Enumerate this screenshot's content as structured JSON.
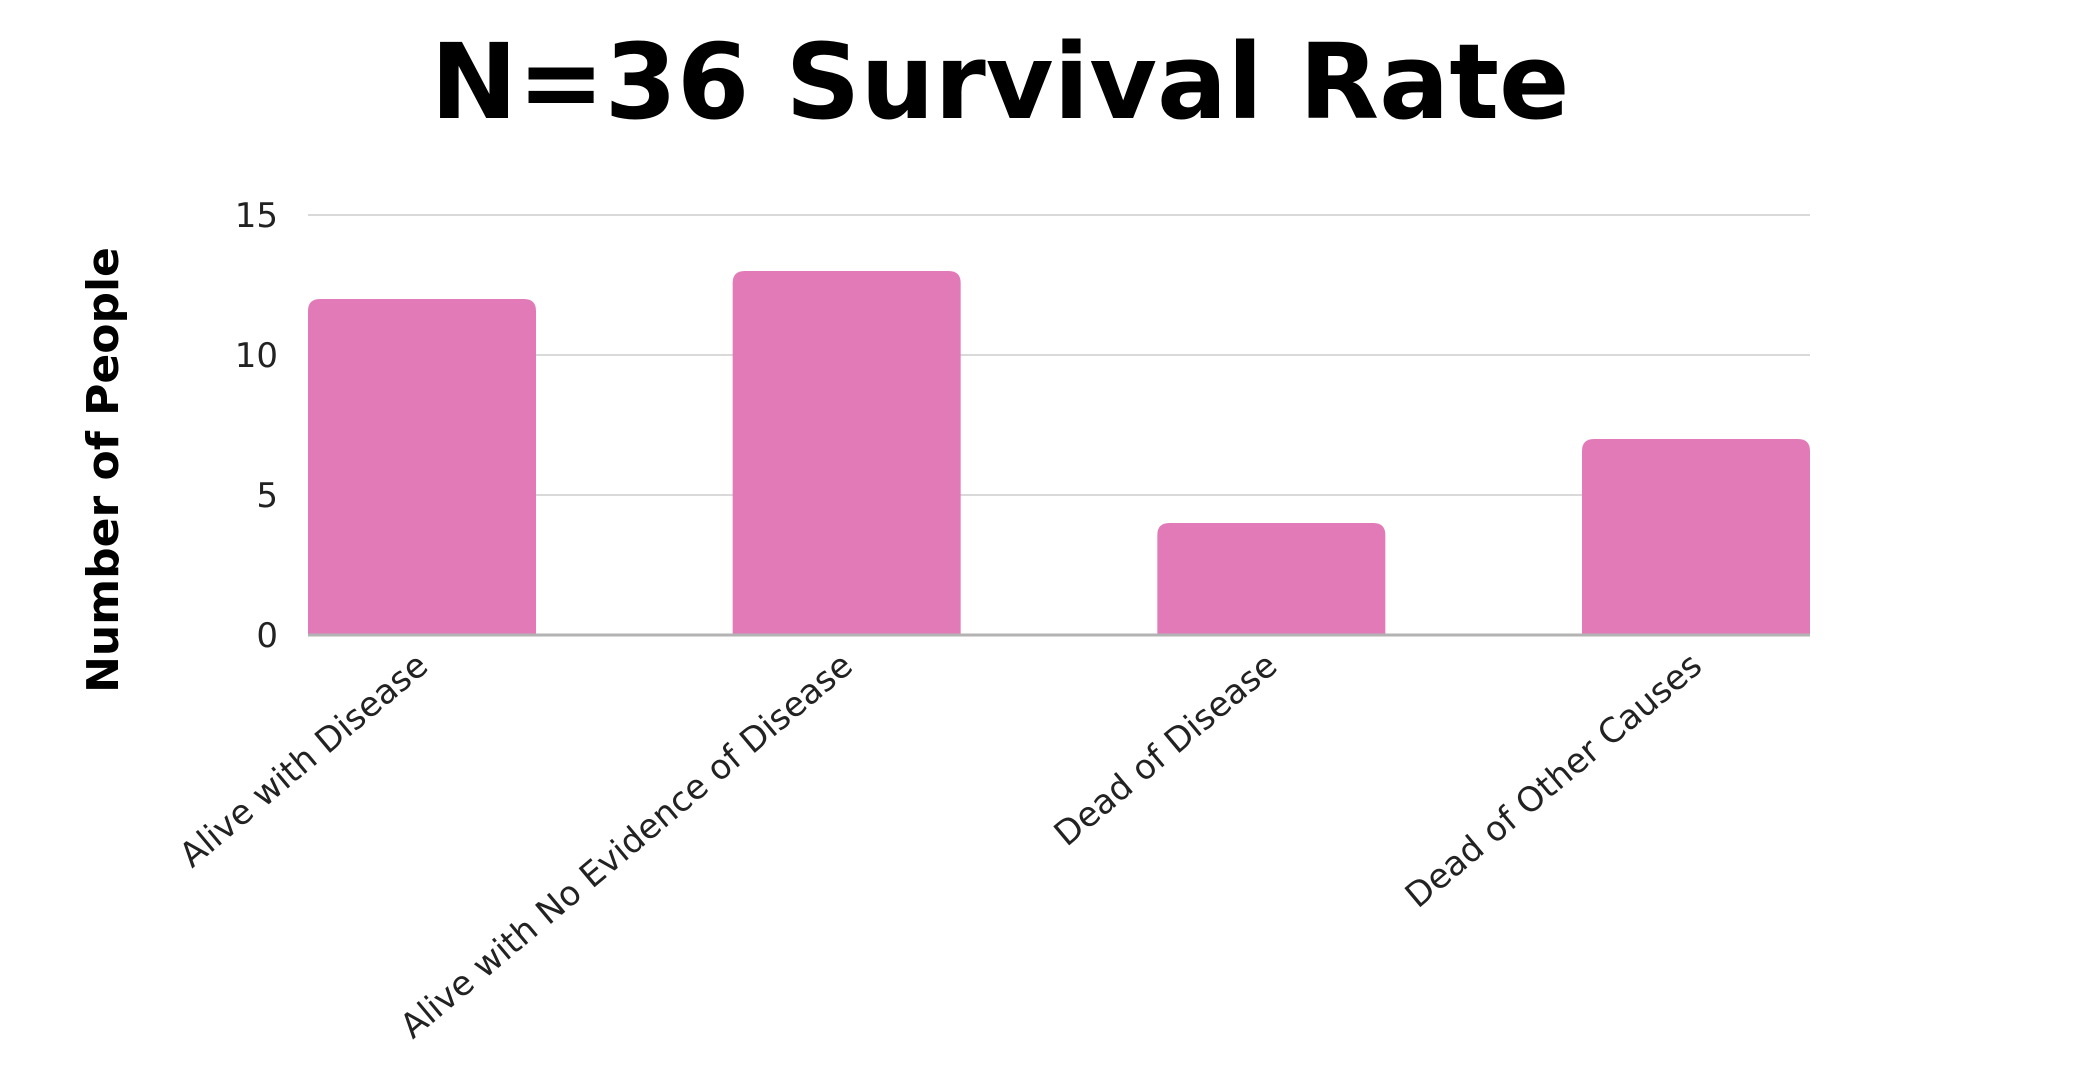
{
  "chart_data": {
    "type": "bar",
    "title": "N=36 Survival Rate",
    "xlabel": "",
    "ylabel": "Number of People",
    "categories": [
      "Alive with Disease",
      "Alive with No Evidence of Disease",
      "Dead of Disease",
      "Dead of Other Causes"
    ],
    "values": [
      12,
      13,
      4,
      7
    ],
    "ylim": [
      0,
      15
    ],
    "yticks": [
      "0",
      "5",
      "10",
      "15"
    ],
    "grid": true,
    "legend": "none",
    "bar_color": "#e27ab8"
  }
}
